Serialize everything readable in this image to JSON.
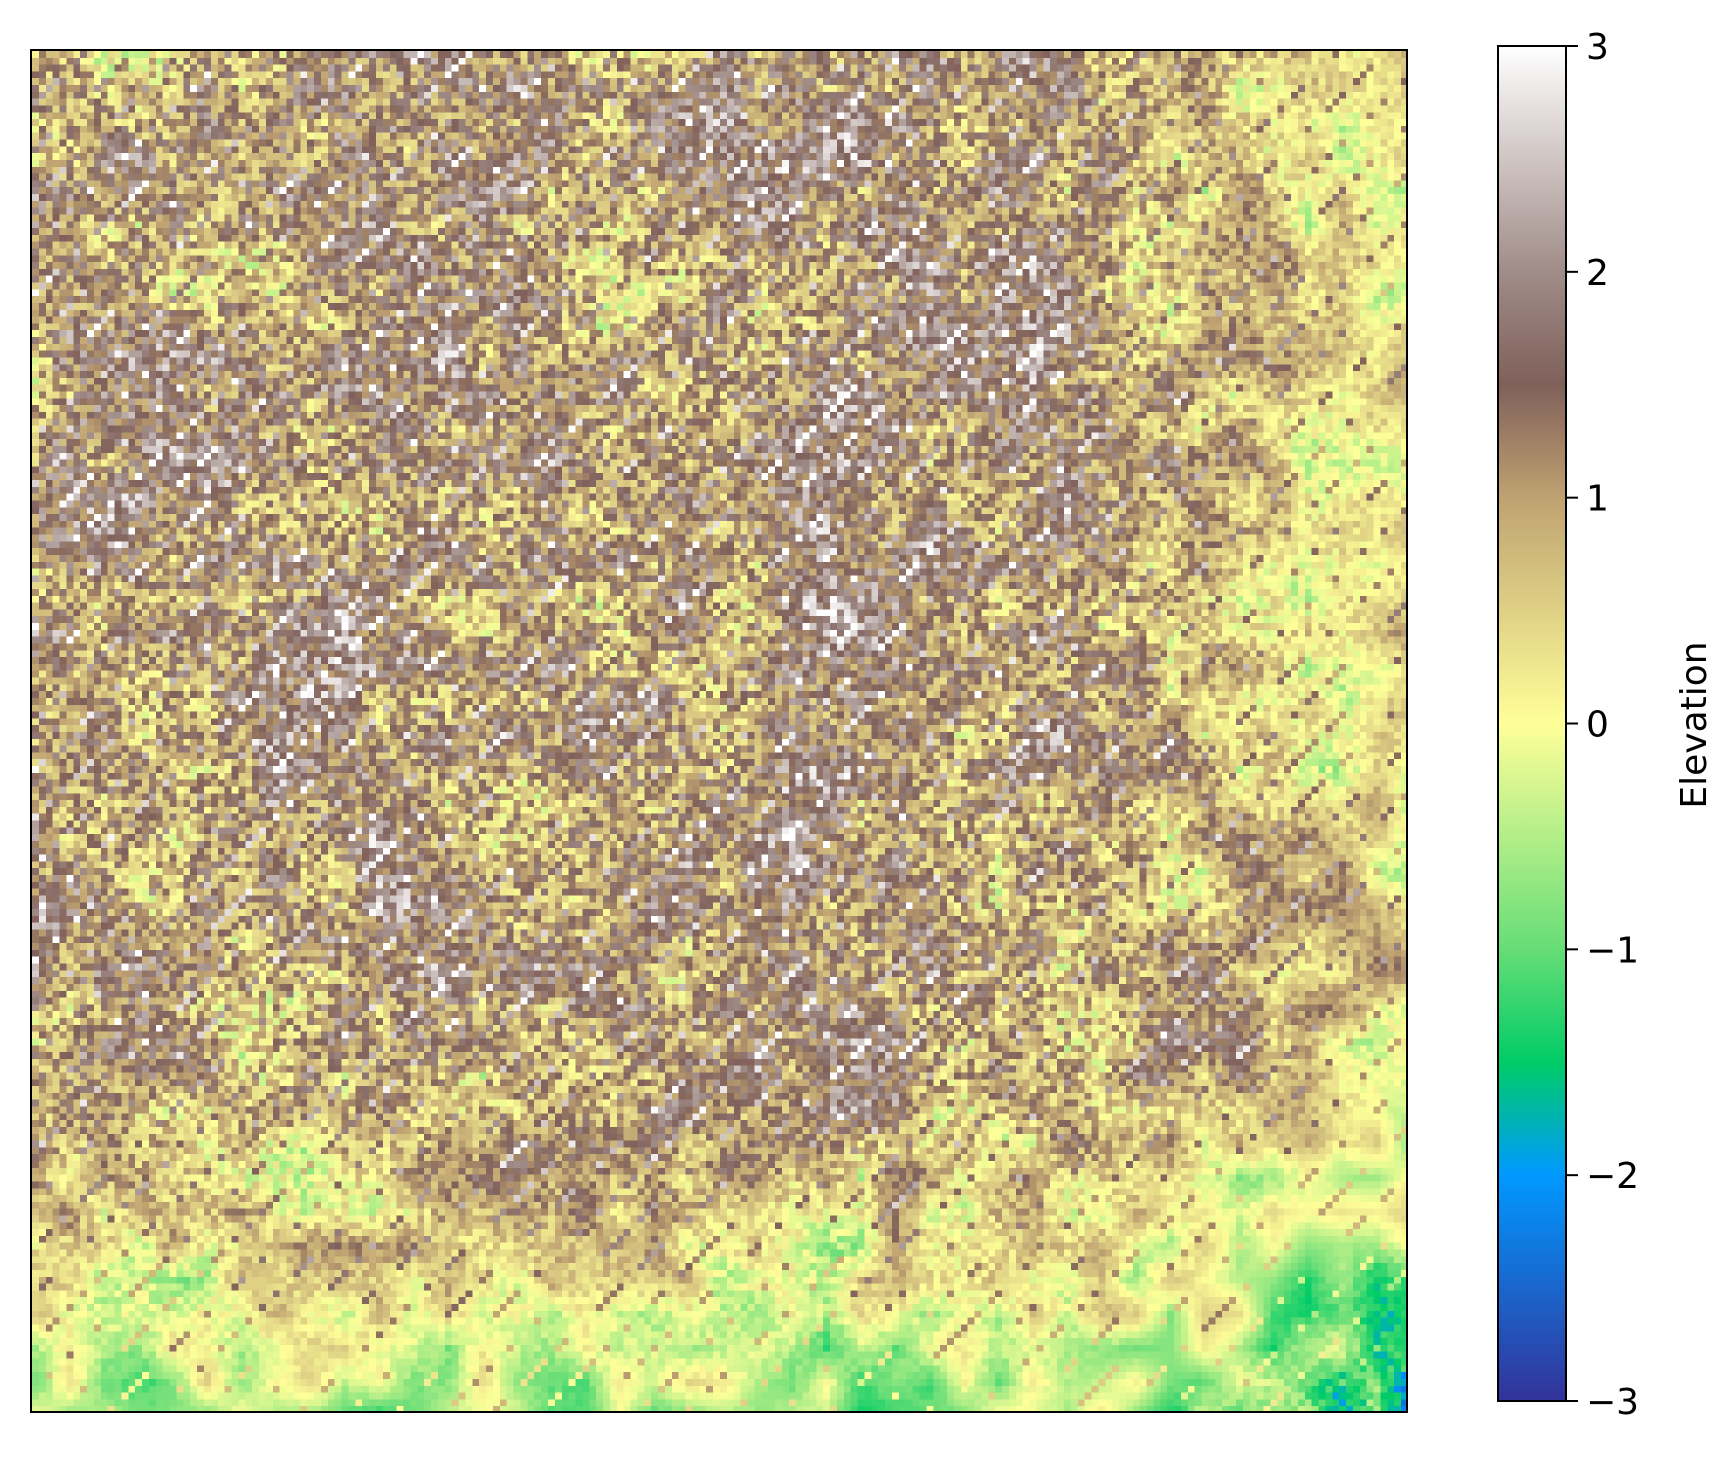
{
  "chart_data": {
    "type": "heatmap",
    "title": "",
    "xlabel": "",
    "ylabel": "",
    "axes_ticks_visible": false,
    "grid": false,
    "colormap": "terrain",
    "colormap_stops": [
      {
        "v": -3.0,
        "color": "#333399"
      },
      {
        "v": -2.0,
        "color": "#0099ff"
      },
      {
        "v": -1.5,
        "color": "#00cc66"
      },
      {
        "v": -1.0,
        "color": "#66dd77"
      },
      {
        "v": 0.0,
        "color": "#ffff99"
      },
      {
        "v": 1.0,
        "color": "#bfa271"
      },
      {
        "v": 1.5,
        "color": "#80605a"
      },
      {
        "v": 2.0,
        "color": "#a08c88"
      },
      {
        "v": 3.0,
        "color": "#ffffff"
      }
    ],
    "value_range": [
      -3,
      3
    ],
    "grid_size": [
      200,
      200
    ],
    "pattern": "noisy elevation field; mostly brown/tan (elevation 1 to 2) with scattered yellow-green patches and deep blue clusters (elevation near -3) concentrated along the right edge and bottom",
    "colorbar": {
      "label": "Elevation",
      "position": "right",
      "ticks": [
        {
          "value": 3,
          "label": "3"
        },
        {
          "value": 2,
          "label": "2"
        },
        {
          "value": 1,
          "label": "1"
        },
        {
          "value": 0,
          "label": "0"
        },
        {
          "value": -1,
          "label": "−1"
        },
        {
          "value": -2,
          "label": "−2"
        },
        {
          "value": -3,
          "label": "−3"
        }
      ]
    }
  }
}
